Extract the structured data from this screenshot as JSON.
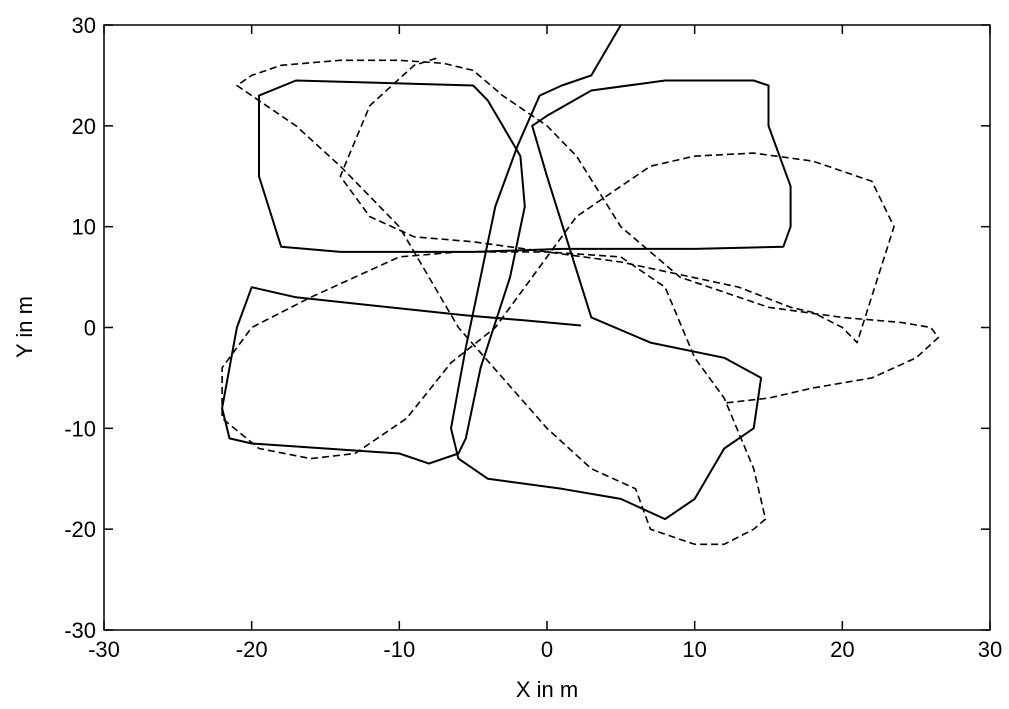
{
  "chart_data": {
    "type": "line",
    "title": "",
    "xlabel": "X in m",
    "ylabel": "Y in m",
    "xlim": [
      -30,
      30
    ],
    "ylim": [
      -30,
      30
    ],
    "xticks": [
      -30,
      -20,
      -10,
      0,
      10,
      20,
      30
    ],
    "yticks": [
      -30,
      -20,
      -10,
      0,
      10,
      20,
      30
    ],
    "grid": false,
    "legend": "none",
    "series": [
      {
        "style": "solid",
        "color": "#000000",
        "x": [
          2.3,
          -1.5,
          -5.5,
          -17,
          -20,
          -21,
          -22,
          -21.5,
          -20,
          -15,
          -10,
          -8,
          -6,
          -5.5,
          -4.5,
          -2.5,
          -1.5,
          -1.8,
          -3,
          -4,
          -5,
          -17,
          -19.5,
          -19.5,
          -18,
          -14,
          -5,
          1,
          10,
          16,
          16.5,
          16.5,
          15,
          15,
          14,
          8,
          3,
          0,
          -1,
          0,
          3,
          7,
          12,
          14.5,
          14,
          12,
          10,
          8,
          5,
          1,
          -4,
          -6,
          -6.5,
          -6,
          -5.5,
          -4.5,
          -3.5,
          -2,
          -0.5,
          1,
          3,
          5
        ],
        "y": [
          0.2,
          0.7,
          1.2,
          3,
          4,
          0,
          -8,
          -11,
          -11.5,
          -12,
          -12.5,
          -13.5,
          -12.5,
          -11,
          -4,
          5,
          12,
          17,
          20,
          22.5,
          24,
          24.5,
          23,
          15,
          8,
          7.5,
          7.5,
          7.8,
          7.8,
          8,
          10,
          14,
          20,
          24,
          24.5,
          24.5,
          23.5,
          21,
          20,
          15,
          1,
          -1.5,
          -3,
          -5,
          -10,
          -12,
          -17,
          -19,
          -17,
          -16,
          -15,
          -13,
          -10,
          -6,
          -2,
          5,
          12,
          18,
          23,
          24,
          25,
          30
        ]
      },
      {
        "style": "dashed",
        "color": "#000000",
        "x": [
          -7.5,
          -9,
          -12,
          -14,
          -12,
          -9,
          -5,
          5,
          13,
          16.5,
          18,
          20,
          21,
          23.5,
          22,
          18,
          14,
          10,
          7,
          5,
          2,
          -1,
          -3.5,
          -6.5,
          -9.5,
          -13,
          -16,
          -19.5,
          -22,
          -22,
          -20,
          -16,
          -10,
          -6,
          -3,
          0,
          5,
          8,
          10,
          12,
          14,
          14.8,
          14,
          12,
          10,
          7,
          6,
          3,
          0,
          -3,
          -6,
          -8,
          -10,
          -14,
          -17,
          -20,
          -21,
          -20,
          -18,
          -14,
          -10,
          -7,
          -5,
          -3,
          0,
          2,
          5,
          9,
          15,
          20,
          24,
          26,
          26.5,
          25,
          22,
          18,
          15,
          12
        ],
        "y": [
          26.7,
          26,
          22,
          15,
          11,
          9,
          8.5,
          6.5,
          4,
          2,
          1.5,
          0,
          -1.5,
          10,
          14.5,
          16.5,
          17.3,
          17,
          16,
          14,
          11,
          5,
          0,
          -3.5,
          -9,
          -12.5,
          -13,
          -12,
          -9,
          -4,
          0,
          3,
          7,
          7.5,
          7.5,
          7.5,
          7,
          4,
          -3,
          -7,
          -14,
          -19,
          -20,
          -21.5,
          -21.5,
          -20,
          -16,
          -14,
          -10,
          -5,
          0,
          5,
          10,
          16,
          20,
          23,
          24,
          25,
          26,
          26.5,
          26.5,
          26.2,
          25.5,
          23,
          20,
          17,
          10,
          5,
          2,
          1,
          0.5,
          0,
          -1,
          -3,
          -5,
          -6,
          -7,
          -7.5
        ]
      }
    ]
  }
}
